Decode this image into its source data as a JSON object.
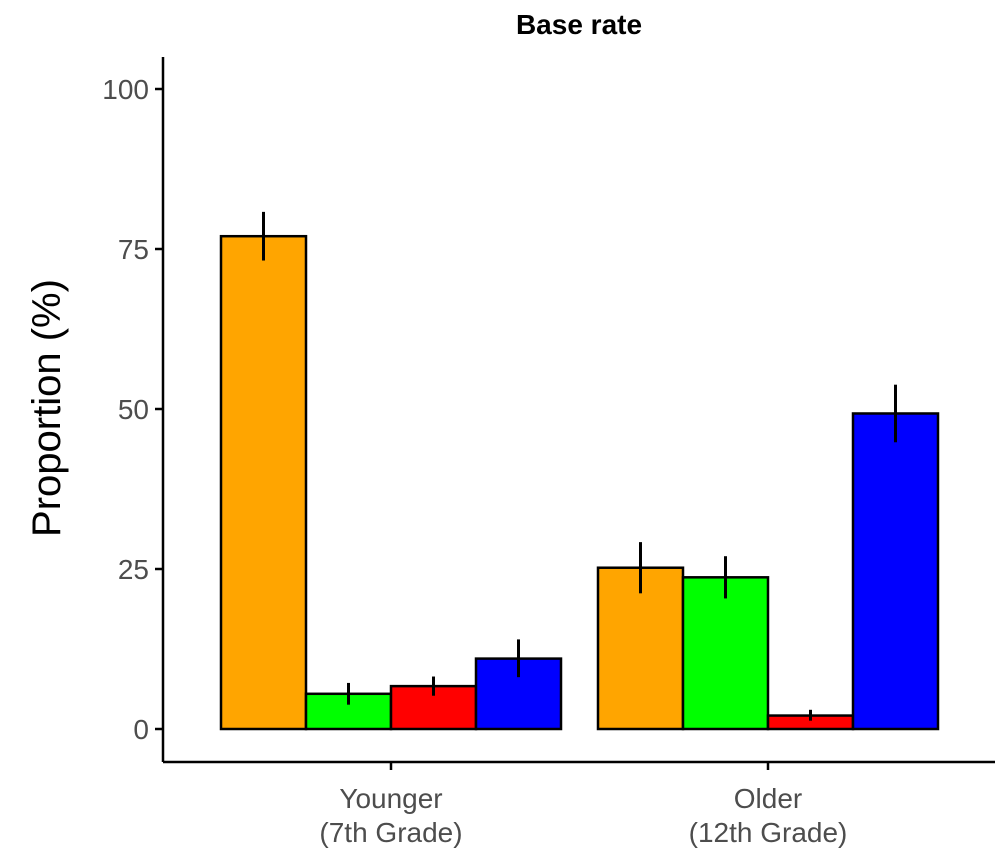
{
  "chart_data": {
    "type": "bar",
    "title": "Base rate",
    "ylabel": "Proportion (%)",
    "xlabel": "",
    "ylim": [
      0,
      105
    ],
    "yticks": [
      0,
      25,
      50,
      75,
      100
    ],
    "grid": false,
    "legend": "none",
    "categories": [
      {
        "line1": "Younger",
        "line2": "(7th Grade)"
      },
      {
        "line1": "Older",
        "line2": "(12th Grade)"
      }
    ],
    "series": [
      {
        "color": "#FFA500",
        "values": [
          77,
          25.2
        ],
        "err": [
          [
            73.2,
            80.8
          ],
          [
            21.2,
            29.2
          ]
        ]
      },
      {
        "color": "#00FF00",
        "values": [
          5.5,
          23.7
        ],
        "err": [
          [
            3.8,
            7.2
          ],
          [
            20.4,
            27.0
          ]
        ]
      },
      {
        "color": "#FF0000",
        "values": [
          6.7,
          2.1
        ],
        "err": [
          [
            5.2,
            8.2
          ],
          [
            1.3,
            3.0
          ]
        ]
      },
      {
        "color": "#0000FF",
        "values": [
          11.0,
          49.3
        ],
        "err": [
          [
            8.1,
            14.0
          ],
          [
            44.8,
            53.8
          ]
        ]
      }
    ]
  }
}
